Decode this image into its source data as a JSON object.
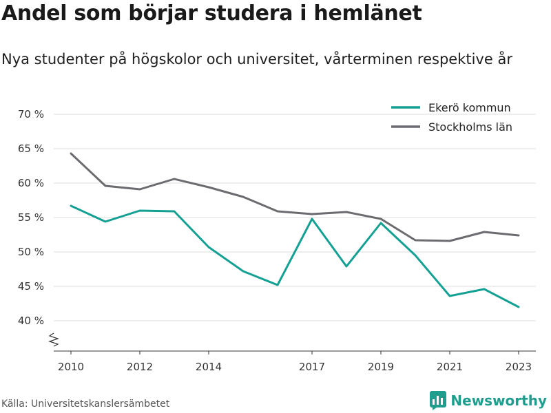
{
  "title": "Andel som börjar studera i hemlänet",
  "subtitle": "Nya studenter på högskolor och universitet, vårterminen respektive år",
  "source": "Källa: Universitetskanslersämbetet",
  "brand": {
    "name": "Newsworthy",
    "icon": "newsworthy-logo-icon",
    "color": "#1f9e8e"
  },
  "chart_data": {
    "type": "line",
    "x": [
      2010,
      2011,
      2012,
      2013,
      2014,
      2015,
      2016,
      2017,
      2018,
      2019,
      2020,
      2021,
      2022,
      2023
    ],
    "x_tick_labels": [
      "2010",
      "2012",
      "2014",
      "2017",
      "2019",
      "2021",
      "2023"
    ],
    "y_tick_labels": [
      "40 %",
      "45 %",
      "50 %",
      "55 %",
      "60 %",
      "65 %",
      "70 %"
    ],
    "ylim": [
      35,
      72
    ],
    "y_axis_break": true,
    "grid": true,
    "legend_position": "top-right",
    "series": [
      {
        "name": "Ekerö kommun",
        "color": "#14a093",
        "values": [
          56.7,
          54.4,
          56.0,
          55.9,
          50.7,
          47.2,
          45.2,
          54.8,
          47.9,
          54.2,
          49.5,
          43.6,
          44.6,
          42.0
        ]
      },
      {
        "name": "Stockholms län",
        "color": "#6b6b70",
        "values": [
          64.3,
          59.6,
          59.1,
          60.6,
          59.4,
          58.0,
          55.9,
          55.5,
          55.8,
          54.8,
          51.7,
          51.6,
          52.9,
          52.4
        ]
      }
    ]
  }
}
